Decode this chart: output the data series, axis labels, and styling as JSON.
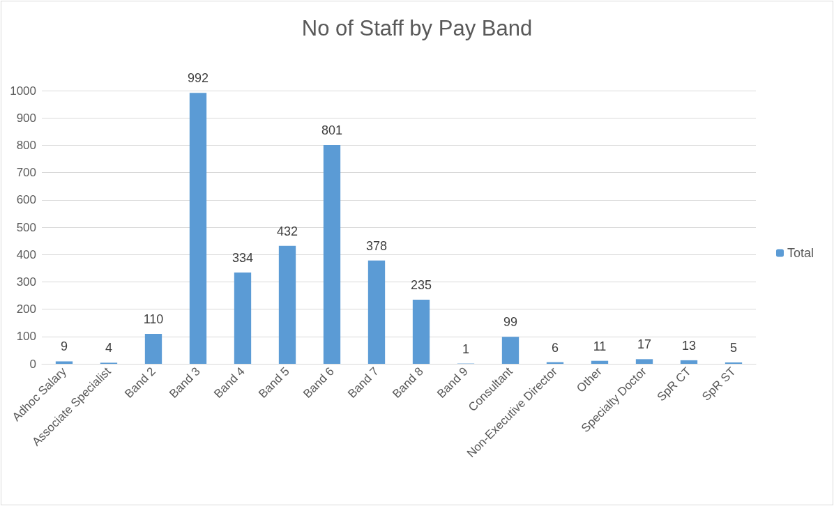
{
  "chart_data": {
    "type": "bar",
    "title": "No of Staff by Pay Band",
    "categories": [
      "Adhoc Salary",
      "Associate Specialist",
      "Band 2",
      "Band 3",
      "Band 4",
      "Band 5",
      "Band 6",
      "Band 7",
      "Band 8",
      "Band 9",
      "Consultant",
      "Non-Executive Director",
      "Other",
      "Specialty Doctor",
      "SpR CT",
      "SpR ST"
    ],
    "series": [
      {
        "name": "Total",
        "color": "#5b9bd5",
        "values": [
          9,
          4,
          110,
          992,
          334,
          432,
          801,
          378,
          235,
          1,
          99,
          6,
          11,
          17,
          13,
          5
        ]
      }
    ],
    "ylim": [
      0,
      1000
    ],
    "yticks": [
      0,
      100,
      200,
      300,
      400,
      500,
      600,
      700,
      800,
      900,
      1000
    ],
    "grid": "y",
    "legend": "right",
    "data_labels": true
  }
}
